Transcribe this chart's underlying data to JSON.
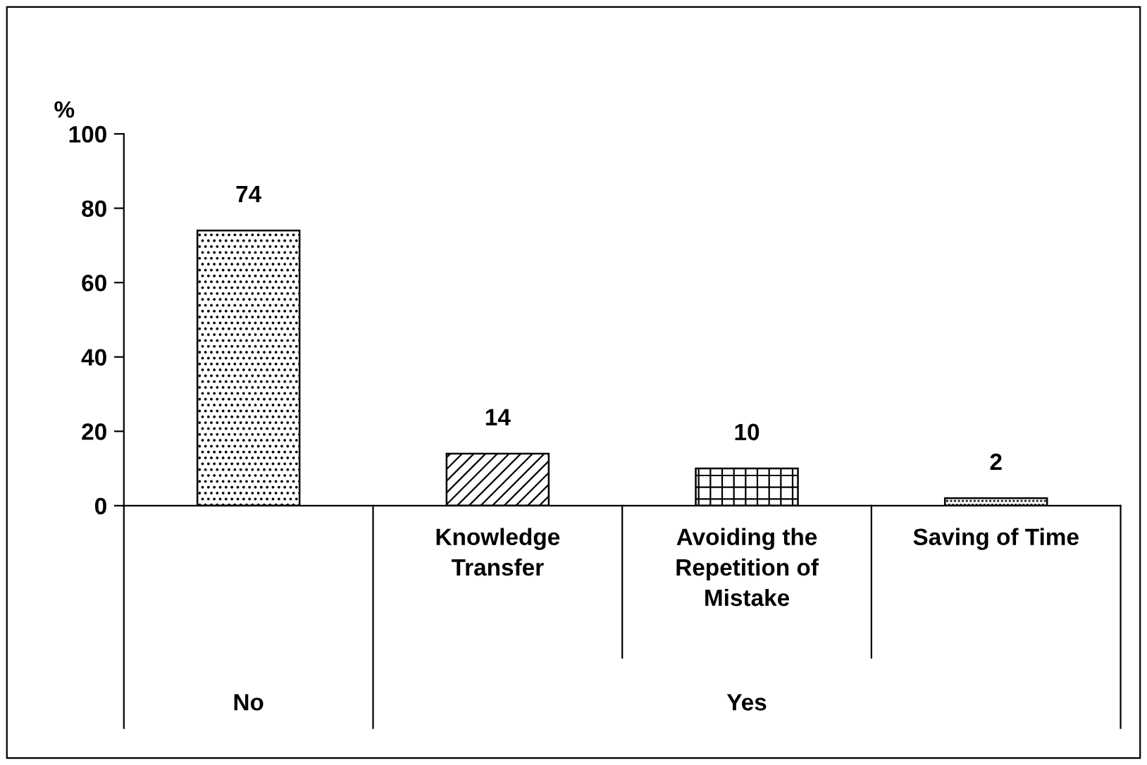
{
  "chart_data": {
    "type": "bar",
    "categories": [
      null,
      "Knowledge\nTransfer",
      "Avoiding the\nRepetition of\nMistake",
      "Saving of Time"
    ],
    "values": [
      74,
      14,
      10,
      2
    ],
    "colors": [
      "#000000",
      "#000000",
      "#000000",
      "#000000"
    ],
    "ylabel": "%",
    "ylim": [
      0,
      100
    ],
    "yticks": [
      0,
      20,
      40,
      60,
      80,
      100
    ],
    "data_labels": true,
    "grid": false,
    "legend": false,
    "annotations": [
      "No",
      "Yes"
    ]
  }
}
